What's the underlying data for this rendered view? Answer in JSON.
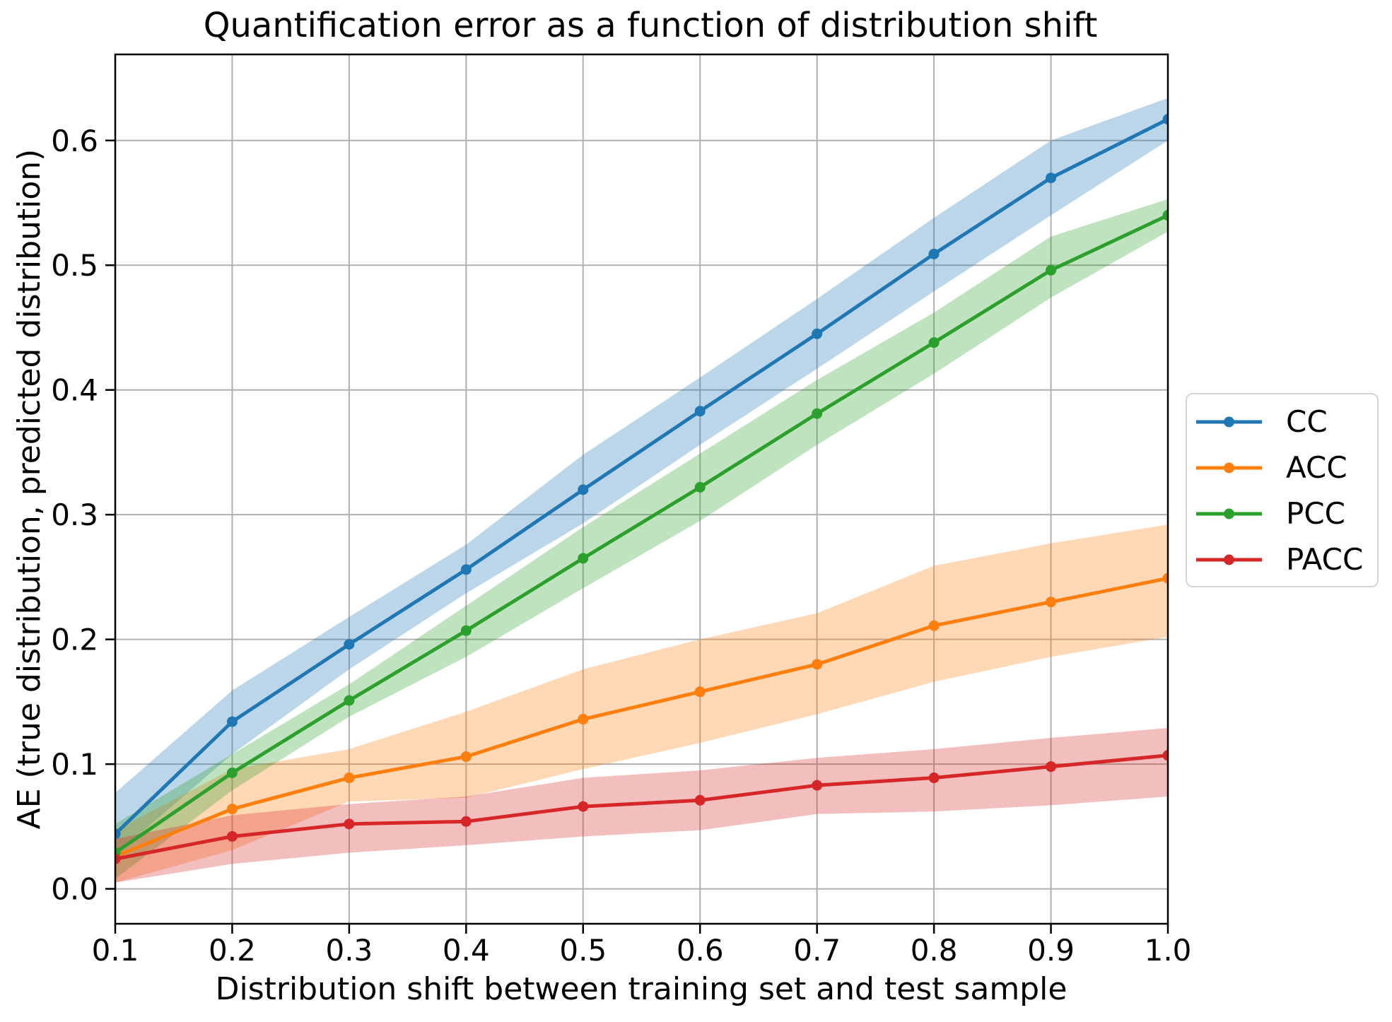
{
  "figure": {
    "background": "#ffffff",
    "text_color": "#000000"
  },
  "chart_data": {
    "type": "line",
    "title": "Quantification error as a function of distribution shift",
    "xlabel": "Distribution shift between training set and test sample",
    "ylabel": "AE (true distribution, predicted distribution)",
    "x": [
      0.1,
      0.2,
      0.3,
      0.4,
      0.5,
      0.6,
      0.7,
      0.8,
      0.9,
      1.0
    ],
    "series": [
      {
        "name": "CC",
        "color": "#1f77b4",
        "values": [
          0.044,
          0.134,
          0.196,
          0.256,
          0.32,
          0.383,
          0.445,
          0.509,
          0.57,
          0.617
        ],
        "band_lower": [
          0.027,
          0.108,
          0.176,
          0.237,
          0.293,
          0.356,
          0.417,
          0.479,
          0.54,
          0.6
        ],
        "band_upper": [
          0.077,
          0.159,
          0.218,
          0.276,
          0.348,
          0.41,
          0.473,
          0.538,
          0.6,
          0.634
        ]
      },
      {
        "name": "ACC",
        "color": "#ff7f0e",
        "values": [
          0.026,
          0.064,
          0.089,
          0.106,
          0.136,
          0.158,
          0.18,
          0.211,
          0.23,
          0.249
        ],
        "band_lower": [
          0.005,
          0.031,
          0.07,
          0.073,
          0.096,
          0.117,
          0.14,
          0.166,
          0.186,
          0.202
        ],
        "band_upper": [
          0.047,
          0.096,
          0.112,
          0.142,
          0.176,
          0.2,
          0.221,
          0.259,
          0.277,
          0.292
        ]
      },
      {
        "name": "PCC",
        "color": "#2ca02c",
        "values": [
          0.029,
          0.093,
          0.151,
          0.207,
          0.265,
          0.322,
          0.381,
          0.438,
          0.496,
          0.54
        ],
        "band_lower": [
          0.008,
          0.079,
          0.138,
          0.186,
          0.241,
          0.295,
          0.356,
          0.413,
          0.474,
          0.527
        ],
        "band_upper": [
          0.052,
          0.108,
          0.164,
          0.227,
          0.29,
          0.349,
          0.408,
          0.462,
          0.523,
          0.553
        ]
      },
      {
        "name": "PACC",
        "color": "#d62728",
        "values": [
          0.024,
          0.042,
          0.052,
          0.054,
          0.066,
          0.071,
          0.083,
          0.089,
          0.098,
          0.107
        ],
        "band_lower": [
          0.005,
          0.02,
          0.029,
          0.035,
          0.042,
          0.047,
          0.06,
          0.062,
          0.067,
          0.074
        ],
        "band_upper": [
          0.04,
          0.059,
          0.068,
          0.074,
          0.089,
          0.095,
          0.105,
          0.112,
          0.121,
          0.129
        ]
      }
    ],
    "xticks": [
      0.1,
      0.2,
      0.3,
      0.4,
      0.5,
      0.6,
      0.7,
      0.8,
      0.9,
      1.0
    ],
    "yticks": [
      0.0,
      0.1,
      0.2,
      0.3,
      0.4,
      0.5,
      0.6
    ],
    "xlim": [
      0.1,
      1.0
    ],
    "ylim": [
      -0.028,
      0.669
    ],
    "grid": true,
    "grid_color": "#b0b0b0",
    "band_opacity": 0.3,
    "legend_position": "center right, outside axes"
  }
}
